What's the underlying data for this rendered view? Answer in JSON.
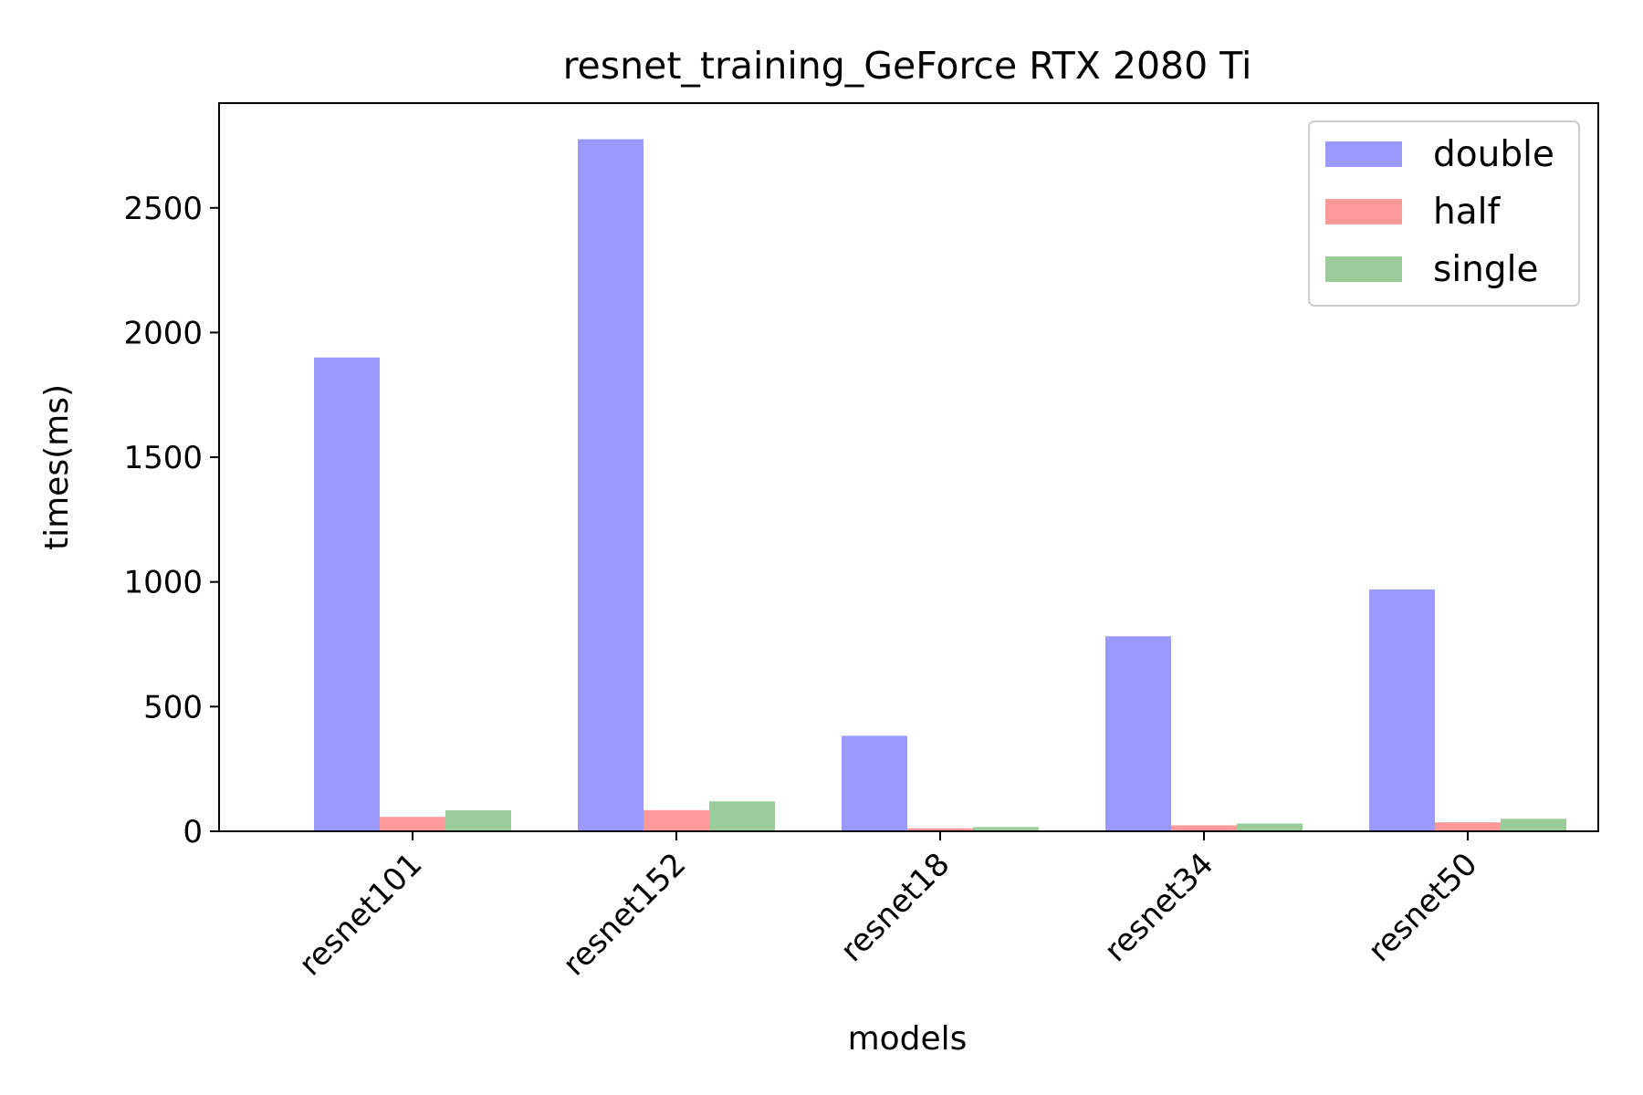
{
  "chart_data": {
    "type": "bar",
    "title": "resnet_training_GeForce RTX 2080 Ti",
    "xlabel": "models",
    "ylabel": "times(ms)",
    "categories": [
      "resnet101",
      "resnet152",
      "resnet18",
      "resnet34",
      "resnet50"
    ],
    "series": [
      {
        "name": "double",
        "color": "#9999ff",
        "values": [
          1900,
          2775,
          383,
          782,
          970
        ]
      },
      {
        "name": "half",
        "color": "#ff9999",
        "values": [
          58,
          85,
          12,
          24,
          36
        ]
      },
      {
        "name": "single",
        "color": "#99cc99",
        "values": [
          84,
          120,
          17,
          31,
          50
        ]
      }
    ],
    "ylim": [
      0,
      2920
    ],
    "yticks": [
      0,
      500,
      1000,
      1500,
      2000,
      2500
    ],
    "legend_position": "top-right",
    "grid": false
  }
}
